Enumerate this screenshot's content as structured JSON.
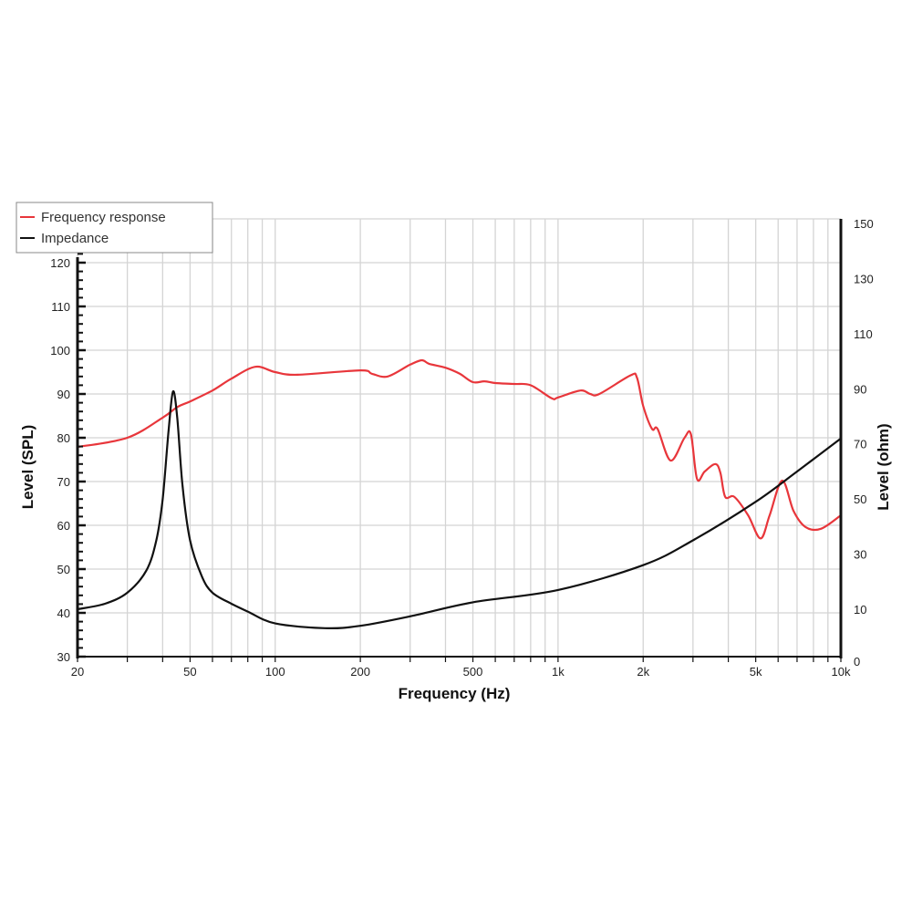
{
  "chart_data": {
    "type": "line",
    "title": "",
    "xlabel": "Frequency (Hz)",
    "ylabel": "Level (SPL)",
    "y2label": "Level (ohm)",
    "xscale": "log",
    "xlim": [
      20,
      10000
    ],
    "ylim": [
      30,
      130
    ],
    "y2lim": [
      0,
      150
    ],
    "grid": true,
    "legend_position": "top-left",
    "x_ticks": [
      {
        "v": 20,
        "label": "20"
      },
      {
        "v": 50,
        "label": "50"
      },
      {
        "v": 100,
        "label": "100"
      },
      {
        "v": 200,
        "label": "200"
      },
      {
        "v": 500,
        "label": "500"
      },
      {
        "v": 1000,
        "label": "1k"
      },
      {
        "v": 2000,
        "label": "2k"
      },
      {
        "v": 5000,
        "label": "5k"
      },
      {
        "v": 10000,
        "label": "10k"
      }
    ],
    "y_ticks": [
      30,
      40,
      50,
      60,
      70,
      80,
      90,
      100,
      110,
      120
    ],
    "y2_ticks": [
      0,
      10,
      30,
      50,
      70,
      90,
      110,
      130,
      150
    ],
    "series": [
      {
        "name": "Frequency response",
        "axis": "left",
        "color": "#e8363b",
        "x": [
          20,
          30,
          40,
          45,
          50,
          60,
          70,
          85,
          100,
          120,
          200,
          220,
          250,
          300,
          330,
          350,
          400,
          450,
          500,
          550,
          600,
          700,
          800,
          950,
          1000,
          1200,
          1300,
          1400,
          1800,
          1900,
          2000,
          2150,
          2250,
          2500,
          2800,
          2950,
          3100,
          3300,
          3600,
          3750,
          3900,
          4200,
          4700,
          5200,
          5600,
          6200,
          6800,
          7500,
          8500,
          10000
        ],
        "y": [
          77.9,
          80,
          84.6,
          87,
          88.3,
          90.8,
          93.5,
          96.2,
          95,
          94.4,
          95.4,
          94.6,
          94,
          96.7,
          97.7,
          96.9,
          96,
          94.6,
          92.7,
          92.9,
          92.5,
          92.3,
          92,
          89,
          89.2,
          90.8,
          90,
          90,
          94.2,
          93.8,
          87.3,
          82,
          82,
          74.8,
          80,
          80.8,
          70.6,
          72.3,
          74,
          72,
          66.5,
          66.5,
          62.3,
          57,
          62.3,
          70.2,
          63.3,
          59.6,
          59.2,
          62.3
        ]
      },
      {
        "name": "Impedance",
        "axis": "right",
        "color": "#111111",
        "x": [
          20,
          25,
          30,
          35,
          38,
          40,
          42,
          43.5,
          45,
          47,
          50,
          55,
          60,
          70,
          80,
          100,
          150,
          200,
          300,
          500,
          1000,
          2000,
          3000,
          5000,
          7000,
          10000
        ],
        "y": [
          10,
          12,
          16,
          24,
          35,
          50,
          75,
          89,
          80,
          55,
          35,
          22,
          16,
          12,
          9.5,
          7,
          6,
          6.5,
          8.5,
          12.5,
          17,
          26,
          35,
          49,
          60,
          72
        ]
      }
    ]
  }
}
